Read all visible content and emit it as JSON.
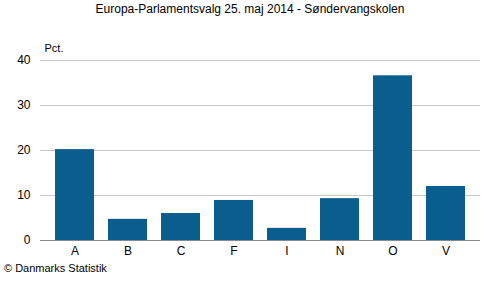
{
  "chart_data": {
    "type": "bar",
    "title": "Europa-Parlamentsvalg 25. maj 2014 - Søndervangskolen",
    "ylabel": "Pct.",
    "caption": "© Danmarks Statistik",
    "categories": [
      "A",
      "B",
      "C",
      "F",
      "I",
      "N",
      "O",
      "V"
    ],
    "values": [
      20.2,
      4.7,
      6.0,
      8.9,
      2.7,
      9.3,
      36.6,
      12.0
    ],
    "color": "#0a5e8e",
    "ylim": [
      0,
      40
    ],
    "yticks": [
      0,
      10,
      20,
      30,
      40
    ],
    "grid": true
  }
}
